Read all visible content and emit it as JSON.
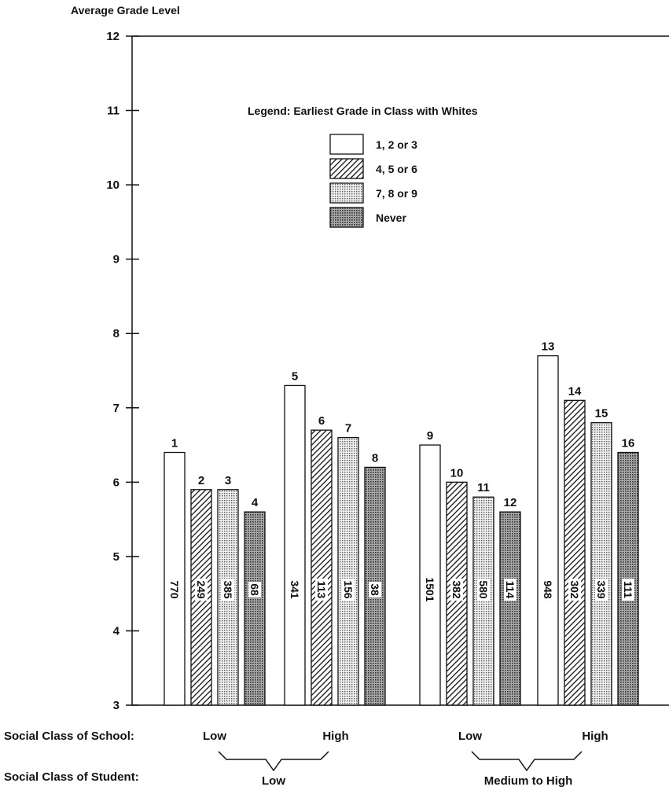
{
  "chart_data": {
    "type": "bar",
    "ylabel": "Average Grade Level",
    "ylim": [
      3,
      12
    ],
    "yticks": [
      3,
      4,
      5,
      6,
      7,
      8,
      9,
      10,
      11,
      12
    ],
    "legend": {
      "title": "Legend:  Earliest Grade in Class with Whites",
      "placement": "upper-center",
      "entries": [
        {
          "label": "1,  2 or 3",
          "pattern": "white"
        },
        {
          "label": "4,  5 or 6",
          "pattern": "hatch"
        },
        {
          "label": "7,  8 or 9",
          "pattern": "dots"
        },
        {
          "label": "Never",
          "pattern": "dense"
        }
      ]
    },
    "groups": [
      {
        "school": "Low",
        "student": "Low",
        "bars": [
          {
            "id": "1",
            "value": 6.4,
            "n": "770"
          },
          {
            "id": "2",
            "value": 5.9,
            "n": "249"
          },
          {
            "id": "3",
            "value": 5.9,
            "n": "385"
          },
          {
            "id": "4",
            "value": 5.6,
            "n": "68"
          }
        ]
      },
      {
        "school": "High",
        "student": "Low",
        "bars": [
          {
            "id": "5",
            "value": 7.3,
            "n": "341"
          },
          {
            "id": "6",
            "value": 6.7,
            "n": "113"
          },
          {
            "id": "7",
            "value": 6.6,
            "n": "156"
          },
          {
            "id": "8",
            "value": 6.2,
            "n": "38"
          }
        ]
      },
      {
        "school": "Low",
        "student": "Medium to High",
        "bars": [
          {
            "id": "9",
            "value": 6.5,
            "n": "1501"
          },
          {
            "id": "10",
            "value": 6.0,
            "n": "382"
          },
          {
            "id": "11",
            "value": 5.8,
            "n": "580"
          },
          {
            "id": "12",
            "value": 5.6,
            "n": "114"
          }
        ]
      },
      {
        "school": "High",
        "student": "Medium to High",
        "bars": [
          {
            "id": "13",
            "value": 7.7,
            "n": "948"
          },
          {
            "id": "14",
            "value": 7.1,
            "n": "302"
          },
          {
            "id": "15",
            "value": 6.8,
            "n": "339"
          },
          {
            "id": "16",
            "value": 6.4,
            "n": "111"
          }
        ]
      }
    ],
    "row_labels": {
      "school": "Social Class of School:",
      "student": "Social Class of Student:"
    },
    "student_groups": [
      "Low",
      "Medium to High"
    ]
  }
}
